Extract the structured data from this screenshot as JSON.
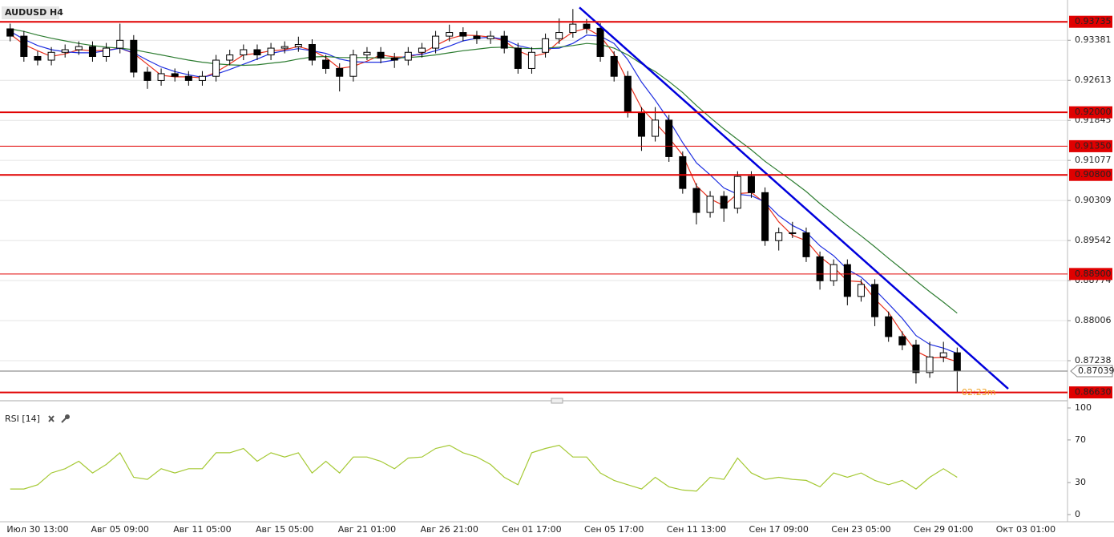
{
  "chart_data": [
    {
      "type": "candlestick",
      "title": "AUDUSD H4",
      "categories": [
        null,
        null,
        "Июл 30 13:00",
        null,
        null,
        null,
        null,
        null,
        "Авг 05 09:00",
        null,
        null,
        null,
        null,
        null,
        "Авг 11 05:00",
        null,
        null,
        null,
        null,
        null,
        "Авг 15 05:00",
        null,
        null,
        null,
        null,
        null,
        "Авг 21 01:00",
        null,
        null,
        null,
        null,
        null,
        "Авг 26 21:00",
        null,
        null,
        null,
        null,
        null,
        "Сен 01 17:00",
        null,
        null,
        null,
        null,
        null,
        "Сен 05 17:00",
        null,
        null,
        null,
        null,
        null,
        "Сен 11 13:00",
        null,
        null,
        null,
        null,
        null,
        "Сен 17 09:00",
        null,
        null,
        null,
        null,
        null,
        "Сен 23 05:00",
        null,
        null,
        null,
        null,
        null,
        "Сен 29 01:00",
        null,
        null,
        null,
        null,
        null,
        "Окт 03 01:00"
      ],
      "open": [
        0.936,
        0.9346,
        0.9307,
        0.93,
        0.9315,
        0.932,
        0.9326,
        0.9307,
        0.9323,
        0.9338,
        0.9277,
        0.9261,
        0.9274,
        0.9269,
        0.9261,
        0.9269,
        0.93,
        0.931,
        0.932,
        0.931,
        0.9323,
        0.9326,
        0.933,
        0.93,
        0.9284,
        0.9269,
        0.931,
        0.9315,
        0.9304,
        0.93,
        0.9315,
        0.9323,
        0.9346,
        0.9353,
        0.9346,
        0.9341,
        0.9346,
        0.9323,
        0.9284,
        0.9315,
        0.9341,
        0.9353,
        0.9369,
        0.9361,
        0.9307,
        0.9269,
        0.92,
        0.9154,
        0.9185,
        0.9115,
        0.9054,
        0.9008,
        0.9039,
        0.9016,
        0.9077,
        0.9046,
        0.8954,
        0.8969,
        0.8969,
        0.8923,
        0.8877,
        0.8908,
        0.8847,
        0.887,
        0.8808,
        0.877,
        0.8754,
        0.8701,
        0.8731,
        0.8739,
        null,
        null,
        null,
        null,
        null
      ],
      "high": [
        0.937,
        0.9356,
        0.9317,
        0.9325,
        0.933,
        0.9336,
        0.9336,
        0.9333,
        0.937,
        0.9348,
        0.9287,
        0.9284,
        0.9284,
        0.9279,
        0.9279,
        0.931,
        0.932,
        0.933,
        0.933,
        0.9333,
        0.9336,
        0.9345,
        0.934,
        0.931,
        0.9294,
        0.932,
        0.9325,
        0.9325,
        0.9314,
        0.9325,
        0.9333,
        0.9356,
        0.9368,
        0.9363,
        0.9356,
        0.9356,
        0.9356,
        0.9333,
        0.9325,
        0.9351,
        0.938,
        0.9398,
        0.9379,
        0.9371,
        0.9317,
        0.9279,
        0.921,
        0.921,
        0.9195,
        0.9125,
        0.9064,
        0.9049,
        0.9049,
        0.9087,
        0.9087,
        0.9056,
        0.8979,
        0.899,
        0.8979,
        0.8933,
        0.8918,
        0.8918,
        0.888,
        0.888,
        0.8818,
        0.878,
        0.8764,
        0.876,
        0.876,
        0.8749,
        null,
        null,
        null,
        null,
        null
      ],
      "low": [
        0.9336,
        0.9297,
        0.929,
        0.929,
        0.9305,
        0.931,
        0.9297,
        0.9297,
        0.9313,
        0.9267,
        0.9245,
        0.9251,
        0.9259,
        0.9251,
        0.9251,
        0.9259,
        0.929,
        0.93,
        0.93,
        0.93,
        0.9313,
        0.9316,
        0.929,
        0.9274,
        0.924,
        0.9259,
        0.93,
        0.9294,
        0.9285,
        0.929,
        0.9305,
        0.9313,
        0.9336,
        0.9336,
        0.9331,
        0.9331,
        0.9313,
        0.9274,
        0.9274,
        0.9305,
        0.9331,
        0.9343,
        0.9351,
        0.9297,
        0.9259,
        0.919,
        0.9126,
        0.9144,
        0.9105,
        0.9044,
        0.8985,
        0.8998,
        0.899,
        0.9006,
        0.9036,
        0.8944,
        0.8935,
        0.8959,
        0.8913,
        0.886,
        0.8867,
        0.883,
        0.8837,
        0.879,
        0.876,
        0.8744,
        0.868,
        0.8691,
        0.8721,
        0.8663,
        null,
        null,
        null,
        null,
        null
      ],
      "close": [
        0.9346,
        0.9307,
        0.93,
        0.9315,
        0.932,
        0.9326,
        0.9307,
        0.9323,
        0.9338,
        0.9277,
        0.9261,
        0.9274,
        0.9269,
        0.9261,
        0.9269,
        0.93,
        0.931,
        0.932,
        0.931,
        0.9323,
        0.9326,
        0.933,
        0.93,
        0.9284,
        0.9269,
        0.931,
        0.9315,
        0.9304,
        0.93,
        0.9315,
        0.9323,
        0.9346,
        0.9353,
        0.9346,
        0.9341,
        0.9346,
        0.9323,
        0.9284,
        0.9315,
        0.9341,
        0.9353,
        0.9369,
        0.9361,
        0.9307,
        0.9269,
        0.92,
        0.9154,
        0.9185,
        0.9115,
        0.9054,
        0.9008,
        0.9039,
        0.9016,
        0.9077,
        0.9046,
        0.8954,
        0.8969,
        0.8969,
        0.8923,
        0.8877,
        0.8908,
        0.8847,
        0.887,
        0.8808,
        0.877,
        0.8754,
        0.8701,
        0.8731,
        0.8739,
        0.87039,
        null,
        null,
        null,
        null,
        null
      ],
      "up_color": "#ffffff",
      "down_color": "#000000",
      "series": [
        {
          "color": "#e8321f",
          "values": [
            0.935,
            0.933,
            0.9318,
            0.9307,
            0.9312,
            0.932,
            0.9318,
            0.9319,
            0.9323,
            0.9313,
            0.9292,
            0.9271,
            0.9268,
            0.9268,
            0.9266,
            0.9277,
            0.9293,
            0.931,
            0.9313,
            0.9318,
            0.932,
            0.9326,
            0.9319,
            0.9305,
            0.9284,
            0.9288,
            0.9298,
            0.931,
            0.9306,
            0.9306,
            0.9313,
            0.9328,
            0.9341,
            0.9348,
            0.9347,
            0.9344,
            0.9337,
            0.9318,
            0.9307,
            0.9313,
            0.9336,
            0.9354,
            0.9361,
            0.9346,
            0.9312,
            0.9259,
            0.9208,
            0.918,
            0.9151,
            0.9118,
            0.9059,
            0.9034,
            0.9021,
            0.9044,
            0.9046,
            0.9026,
            0.899,
            0.8964,
            0.8954,
            0.8923,
            0.8903,
            0.8877,
            0.8875,
            0.8842,
            0.8816,
            0.8777,
            0.8742,
            0.8729,
            0.873,
            0.8722,
            null,
            null,
            null,
            null,
            null
          ]
        },
        {
          "color": "#1f2fe0",
          "values": [
            0.9355,
            0.934,
            0.9328,
            0.932,
            0.9316,
            0.9314,
            0.9314,
            0.9318,
            0.9323,
            0.9314,
            0.93,
            0.9287,
            0.9278,
            0.9272,
            0.9267,
            0.9273,
            0.9282,
            0.9292,
            0.9302,
            0.9313,
            0.9318,
            0.9322,
            0.9318,
            0.9313,
            0.9302,
            0.9297,
            0.9296,
            0.9296,
            0.93,
            0.9309,
            0.9311,
            0.9318,
            0.9327,
            0.9337,
            0.9342,
            0.9344,
            0.934,
            0.9328,
            0.9322,
            0.9322,
            0.9323,
            0.9332,
            0.9348,
            0.9346,
            0.9332,
            0.9301,
            0.9258,
            0.9223,
            0.9185,
            0.9142,
            0.9103,
            0.908,
            0.9055,
            0.9043,
            0.904,
            0.9028,
            0.9002,
            0.8983,
            0.897,
            0.8944,
            0.8925,
            0.8899,
            0.8884,
            0.886,
            0.8833,
            0.8805,
            0.8772,
            0.8755,
            0.8748,
            0.8738,
            null,
            null,
            null,
            null,
            null
          ]
        },
        {
          "color": "#2e7d32",
          "values": [
            0.936,
            0.9355,
            0.9348,
            0.9342,
            0.9337,
            0.9332,
            0.9328,
            0.9325,
            0.9323,
            0.932,
            0.9315,
            0.931,
            0.9305,
            0.93,
            0.9296,
            0.9293,
            0.9291,
            0.929,
            0.9291,
            0.9294,
            0.9297,
            0.9302,
            0.9306,
            0.9307,
            0.9305,
            0.9305,
            0.9305,
            0.9304,
            0.9304,
            0.9305,
            0.9307,
            0.931,
            0.9314,
            0.9318,
            0.9321,
            0.9324,
            0.9325,
            0.9323,
            0.9322,
            0.9323,
            0.9325,
            0.9328,
            0.9332,
            0.933,
            0.9323,
            0.931,
            0.9293,
            0.9278,
            0.9259,
            0.9238,
            0.9213,
            0.919,
            0.9168,
            0.9148,
            0.9128,
            0.9106,
            0.9087,
            0.9068,
            0.9048,
            0.9025,
            0.9004,
            0.8983,
            0.8963,
            0.8942,
            0.892,
            0.8899,
            0.8877,
            0.8856,
            0.8836,
            0.8815,
            null,
            null,
            null,
            null,
            null
          ]
        }
      ],
      "ylim": [
        0.8647,
        0.9403
      ],
      "yticks": [
        0.93381,
        0.92613,
        0.91845,
        0.91077,
        0.90309,
        0.89542,
        0.88774,
        0.88006,
        0.87238
      ],
      "grid": true,
      "levels": [
        {
          "value": 0.93735,
          "label": "0.93735",
          "width": 2
        },
        {
          "value": 0.92,
          "label": "0.92000",
          "width": 2
        },
        {
          "value": 0.9135,
          "label": "0.91350",
          "width": 1
        },
        {
          "value": 0.908,
          "label": "0.90800",
          "width": 2
        },
        {
          "value": 0.889,
          "label": "0.88900",
          "width": 1
        },
        {
          "value": 0.8663,
          "label": "0.86630",
          "width": 2
        }
      ],
      "level_color": "#e00000",
      "current": 0.87039,
      "trendline": {
        "from": 0.9401,
        "to": 0.867,
        "color": "#0000dd"
      },
      "annotation": "02:23m"
    },
    {
      "type": "line",
      "title": "RSI [14]",
      "color": "#a5c934",
      "values": [
        24,
        24,
        28,
        39,
        43,
        50,
        39,
        47,
        58,
        35,
        33,
        43,
        39,
        43,
        43,
        58,
        58,
        62,
        50,
        58,
        54,
        58,
        39,
        50,
        39,
        54,
        54,
        50,
        43,
        53,
        54,
        62,
        65,
        58,
        54,
        47,
        35,
        28,
        58,
        62,
        65,
        54,
        54,
        39,
        32,
        28,
        24,
        35,
        26,
        23,
        22,
        35,
        33,
        53,
        39,
        33,
        35,
        33,
        32,
        26,
        39,
        35,
        39,
        32,
        28,
        32,
        24,
        35,
        43,
        35,
        null,
        null,
        null,
        null,
        null
      ],
      "ylim": [
        0,
        100
      ],
      "yticks": [
        100,
        70,
        30,
        0
      ]
    }
  ]
}
